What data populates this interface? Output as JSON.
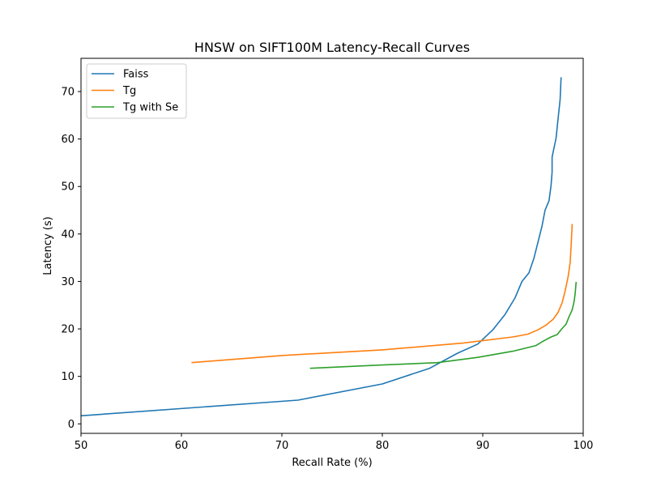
{
  "chart_data": {
    "type": "line",
    "title": "HNSW on SIFT100M Latency-Recall Curves",
    "xlabel": "Recall Rate (%)",
    "ylabel": "Latency (s)",
    "xlim": [
      50,
      100
    ],
    "ylim": [
      -2,
      77
    ],
    "x_ticks": [
      50,
      60,
      70,
      80,
      90,
      100
    ],
    "y_ticks": [
      0,
      10,
      20,
      30,
      40,
      50,
      60,
      70
    ],
    "grid": false,
    "legend_position": "top-left",
    "series": [
      {
        "name": "Faiss",
        "color": "#1f77b4",
        "points": [
          [
            50.0,
            1.7
          ],
          [
            71.6,
            5.0
          ],
          [
            80.0,
            8.4
          ],
          [
            84.7,
            11.7
          ],
          [
            87.5,
            14.9
          ],
          [
            89.5,
            16.8
          ],
          [
            91.0,
            19.8
          ],
          [
            92.2,
            23.0
          ],
          [
            93.2,
            26.5
          ],
          [
            93.9,
            30.0
          ],
          [
            94.6,
            31.8
          ],
          [
            95.1,
            34.9
          ],
          [
            95.5,
            38.3
          ],
          [
            95.9,
            41.7
          ],
          [
            96.2,
            45.0
          ],
          [
            96.6,
            47.0
          ],
          [
            96.8,
            50.2
          ],
          [
            96.9,
            53.0
          ],
          [
            96.9,
            56.2
          ],
          [
            97.3,
            60.2
          ],
          [
            97.5,
            64.3
          ],
          [
            97.7,
            68.3
          ],
          [
            97.8,
            73.0
          ]
        ]
      },
      {
        "name": "Tg",
        "color": "#ff7f0e",
        "points": [
          [
            61.0,
            12.9
          ],
          [
            70.0,
            14.4
          ],
          [
            80.0,
            15.6
          ],
          [
            88.0,
            17.0
          ],
          [
            93.0,
            18.3
          ],
          [
            94.5,
            18.9
          ],
          [
            95.5,
            19.8
          ],
          [
            96.3,
            20.8
          ],
          [
            97.0,
            22.0
          ],
          [
            97.5,
            23.5
          ],
          [
            97.9,
            25.5
          ],
          [
            98.2,
            28.0
          ],
          [
            98.5,
            31.0
          ],
          [
            98.7,
            34.0
          ],
          [
            98.8,
            37.5
          ],
          [
            98.9,
            42.1
          ]
        ]
      },
      {
        "name": "Tg with Se",
        "color": "#2ca02c",
        "points": [
          [
            72.8,
            11.7
          ],
          [
            80.0,
            12.4
          ],
          [
            85.5,
            12.9
          ],
          [
            89.5,
            14.0
          ],
          [
            93.0,
            15.3
          ],
          [
            95.3,
            16.5
          ],
          [
            96.0,
            17.4
          ],
          [
            96.8,
            18.3
          ],
          [
            97.4,
            18.8
          ],
          [
            97.9,
            20.1
          ],
          [
            98.3,
            21.0
          ],
          [
            98.6,
            22.6
          ],
          [
            98.9,
            24.0
          ],
          [
            99.1,
            25.8
          ],
          [
            99.2,
            27.5
          ],
          [
            99.3,
            29.9
          ]
        ]
      }
    ]
  }
}
